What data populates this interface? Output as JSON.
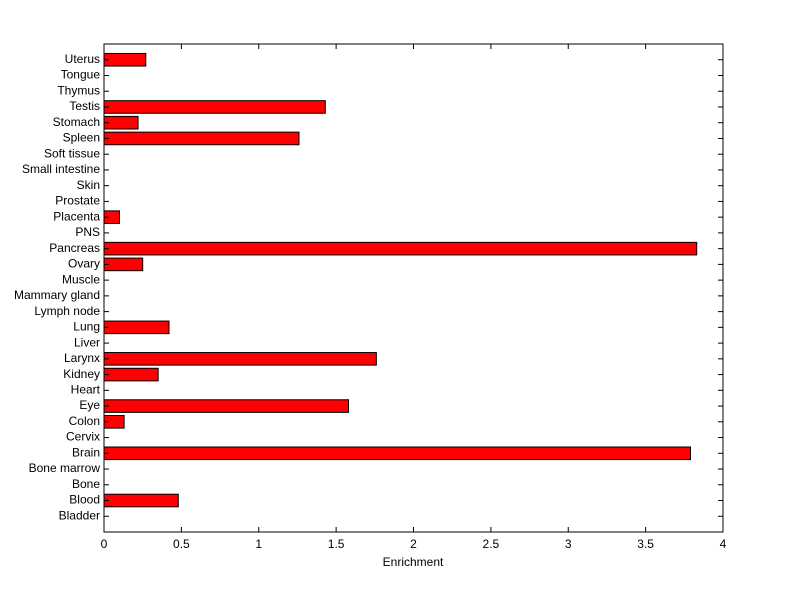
{
  "chart_data": {
    "type": "barh",
    "xlabel": "Enrichment",
    "categories": [
      "Bladder",
      "Blood",
      "Bone",
      "Bone marrow",
      "Brain",
      "Cervix",
      "Colon",
      "Eye",
      "Heart",
      "Kidney",
      "Larynx",
      "Liver",
      "Lung",
      "Lymph node",
      "Mammary gland",
      "Muscle",
      "Ovary",
      "Pancreas",
      "PNS",
      "Placenta",
      "Prostate",
      "Skin",
      "Small intestine",
      "Soft tissue",
      "Spleen",
      "Stomach",
      "Testis",
      "Thymus",
      "Tongue",
      "Uterus"
    ],
    "values": [
      0,
      0.48,
      0,
      0,
      3.79,
      0,
      0.13,
      1.58,
      0,
      0.35,
      1.76,
      0,
      0.42,
      0,
      0,
      0,
      0.25,
      3.83,
      0,
      0.1,
      0,
      0,
      0,
      0,
      1.26,
      0.22,
      1.43,
      0,
      0,
      0.27
    ],
    "color": "#ff0000",
    "xlim": [
      0,
      4
    ],
    "xticks": [
      0,
      0.5,
      1,
      1.5,
      2,
      2.5,
      3,
      3.5,
      4
    ],
    "grid": false
  }
}
